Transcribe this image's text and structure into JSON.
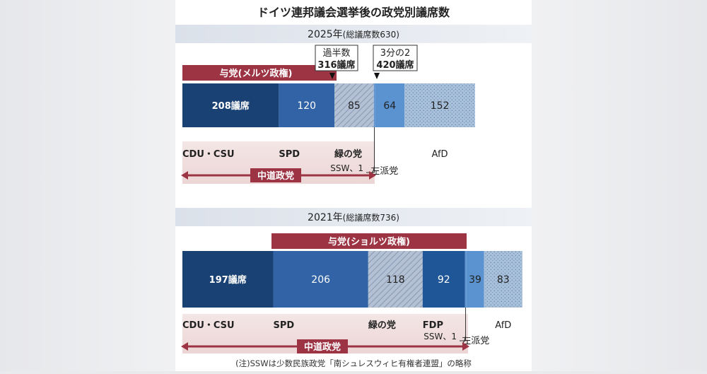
{
  "title": "ドイツ連邦議会選挙後の政党別議席数",
  "footnote": "(注)SSWは少数民族政党「南シュレスウィヒ有権者連盟」の略称",
  "colors": {
    "header_band": "#dde3ec",
    "coalition": "#9c3444",
    "centrist_band": "#f2e3e3",
    "cdu": "#1a4173",
    "spd": "#3163a6",
    "greens": "#a9b8cf",
    "fdp": "#1f5697",
    "left": "#5a93cf",
    "afd": "#a9c0da"
  },
  "chart_data": [
    {
      "type": "bar",
      "orientation": "horizontal-stacked",
      "year_label": "2025年",
      "total_label": "(総議席数630)",
      "total": 630,
      "coalition_label": "与党(メルツ政権)",
      "centrist_label": "中道政党",
      "markers": [
        {
          "line1": "過半数",
          "line2": "316議席",
          "value": 316
        },
        {
          "line1": "3分の2",
          "line2": "420議席",
          "value": 420
        }
      ],
      "segments": [
        {
          "party": "CDU・CSU",
          "value": 208,
          "value_text": "208議席",
          "color_key": "cdu",
          "pattern": "solid"
        },
        {
          "party": "SPD",
          "value": 120,
          "value_text": "120",
          "color_key": "spd",
          "pattern": "solid"
        },
        {
          "party": "緑の党",
          "value": 85,
          "value_text": "85",
          "color_key": "greens",
          "pattern": "hatch"
        },
        {
          "party": "SSW",
          "value": 1,
          "value_text": "",
          "color_key": "left",
          "pattern": "solid"
        },
        {
          "party": "左派党",
          "value": 64,
          "value_text": "64",
          "color_key": "left",
          "pattern": "solid"
        },
        {
          "party": "AfD",
          "value": 152,
          "value_text": "152",
          "color_key": "afd",
          "pattern": "dots"
        }
      ],
      "ssw_label": "SSW、1"
    },
    {
      "type": "bar",
      "orientation": "horizontal-stacked",
      "year_label": "2021年",
      "total_label": "(総議席数736)",
      "total": 736,
      "coalition_label": "与党(ショルツ政権)",
      "centrist_label": "中道政党",
      "segments": [
        {
          "party": "CDU・CSU",
          "value": 197,
          "value_text": "197議席",
          "color_key": "cdu",
          "pattern": "solid"
        },
        {
          "party": "SPD",
          "value": 206,
          "value_text": "206",
          "color_key": "spd",
          "pattern": "solid"
        },
        {
          "party": "緑の党",
          "value": 118,
          "value_text": "118",
          "color_key": "greens",
          "pattern": "hatch"
        },
        {
          "party": "FDP",
          "value": 92,
          "value_text": "92",
          "color_key": "fdp",
          "pattern": "solid"
        },
        {
          "party": "SSW",
          "value": 1,
          "value_text": "",
          "color_key": "left",
          "pattern": "solid"
        },
        {
          "party": "左派党",
          "value": 39,
          "value_text": "39",
          "color_key": "left",
          "pattern": "solid"
        },
        {
          "party": "AfD",
          "value": 83,
          "value_text": "83",
          "color_key": "afd",
          "pattern": "dots"
        }
      ],
      "ssw_label": "SSW、1"
    }
  ]
}
